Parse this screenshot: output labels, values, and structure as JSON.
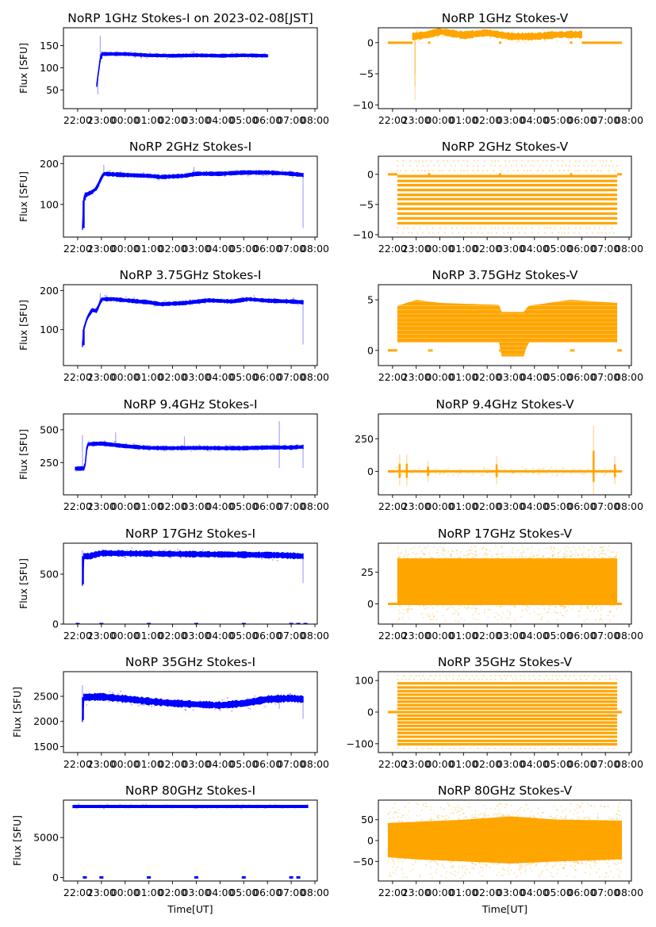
{
  "figure": {
    "x_tick_labels": [
      "22:00",
      "23:00",
      "00:00",
      "01:00",
      "02:00",
      "03:00",
      "04:00",
      "05:00",
      "06:00",
      "07:00",
      "08:00"
    ],
    "x_label": "Time[UT]",
    "y_label_left": "Flux [SFU]",
    "colors": {
      "stokes_i": "#0000ff",
      "stokes_v": "#ffa500"
    }
  },
  "chart_data": [
    {
      "type": "scatter",
      "panel": "left-1",
      "color": "#0000ff",
      "title": "NoRP 1GHz Stokes-I on 2023-02-08[JST]",
      "xlabel": "",
      "ylabel": "Flux [SFU]",
      "xlim_hours": [
        21.4,
        32.1
      ],
      "ylim": [
        8,
        190
      ],
      "yticks": [
        50,
        100,
        150
      ],
      "ytick_labels": [
        "50",
        "100",
        "150"
      ],
      "trend": [
        [
          22.8,
          60
        ],
        [
          22.95,
          120
        ],
        [
          23.0,
          131
        ],
        [
          24.0,
          131
        ],
        [
          25.0,
          128
        ],
        [
          26.0,
          127
        ],
        [
          27.0,
          128
        ],
        [
          28.0,
          127
        ],
        [
          29.0,
          128
        ],
        [
          30.0,
          127
        ],
        [
          30.0,
          125
        ]
      ],
      "spread": 3,
      "outliers": [
        [
          22.95,
          172
        ],
        [
          22.85,
          40
        ],
        [
          26.9,
          138
        ]
      ]
    },
    {
      "type": "scatter",
      "panel": "right-1",
      "color": "#ffa500",
      "title": "NoRP 1GHz Stokes-V",
      "xlabel": "",
      "ylabel": "",
      "xlim_hours": [
        21.4,
        32.1
      ],
      "ylim": [
        -10.6,
        2.4
      ],
      "yticks": [
        -10,
        -5,
        0
      ],
      "ytick_labels": [
        "−10",
        "−5",
        "0"
      ],
      "flat_segments": [
        [
          21.8,
          22.85,
          0
        ],
        [
          23.5,
          23.6,
          0
        ],
        [
          26.5,
          26.6,
          0
        ],
        [
          29.5,
          29.6,
          0
        ],
        [
          30.0,
          31.7,
          0
        ]
      ],
      "trend": [
        [
          22.85,
          1.0
        ],
        [
          23.5,
          1.3
        ],
        [
          24.0,
          1.8
        ],
        [
          25.0,
          1.2
        ],
        [
          26.0,
          1.6
        ],
        [
          27.0,
          1.0
        ],
        [
          28.0,
          1.0
        ],
        [
          29.0,
          1.3
        ],
        [
          30.0,
          1.3
        ]
      ],
      "spread": 0.5,
      "outliers": [
        [
          22.95,
          -9.2
        ],
        [
          22.95,
          -5
        ],
        [
          22.95,
          -7
        ]
      ]
    },
    {
      "type": "scatter",
      "panel": "left-2",
      "color": "#0000ff",
      "title": "NoRP 2GHz Stokes-I",
      "xlabel": "",
      "ylabel": "Flux [SFU]",
      "xlim_hours": [
        21.4,
        32.1
      ],
      "ylim": [
        20,
        218
      ],
      "yticks": [
        100,
        200
      ],
      "ytick_labels": [
        "100",
        "200"
      ],
      "trend": [
        [
          22.2,
          42
        ],
        [
          22.25,
          110
        ],
        [
          22.3,
          122
        ],
        [
          22.6,
          130
        ],
        [
          22.8,
          140
        ],
        [
          23.0,
          165
        ],
        [
          23.1,
          175
        ],
        [
          24.0,
          172
        ],
        [
          25.0,
          170
        ],
        [
          25.5,
          167
        ],
        [
          26.5,
          170
        ],
        [
          27.0,
          175
        ],
        [
          28.0,
          175
        ],
        [
          29.0,
          178
        ],
        [
          30.0,
          178
        ],
        [
          31.0,
          175
        ],
        [
          31.5,
          172
        ]
      ],
      "spread": 4,
      "outliers": [
        [
          23.1,
          197
        ],
        [
          26.9,
          192
        ],
        [
          31.5,
          42
        ]
      ]
    },
    {
      "type": "scatter",
      "panel": "right-2",
      "color": "#ffa500",
      "title": "NoRP 2GHz Stokes-V",
      "xlabel": "",
      "ylabel": "",
      "xlim_hours": [
        21.4,
        32.1
      ],
      "ylim": [
        -10.4,
        3.0
      ],
      "yticks": [
        -10,
        -5,
        0
      ],
      "ytick_labels": [
        "−10",
        "−5",
        "0"
      ],
      "flat_segments": [
        [
          21.8,
          22.2,
          0
        ],
        [
          23.5,
          23.6,
          0
        ],
        [
          26.5,
          26.6,
          0
        ],
        [
          29.5,
          29.6,
          0
        ],
        [
          31.5,
          31.7,
          0
        ]
      ],
      "levels": [
        -0.3,
        -1.1,
        -1.8,
        -2.6,
        -3.4,
        -4.1,
        -4.9,
        -5.7,
        -6.5,
        -7.3,
        -8.1
      ],
      "levels_range": [
        22.2,
        31.5
      ],
      "faint_levels": [
        2.2,
        1.4,
        0.6,
        -8.9,
        -9.7
      ]
    },
    {
      "type": "scatter",
      "panel": "left-3",
      "color": "#0000ff",
      "title": "NoRP 3.75GHz Stokes-I",
      "xlabel": "",
      "ylabel": "Flux [SFU]",
      "xlim_hours": [
        21.4,
        32.1
      ],
      "ylim": [
        8,
        215
      ],
      "yticks": [
        100,
        200
      ],
      "ytick_labels": [
        "100",
        "200"
      ],
      "trend": [
        [
          22.2,
          60
        ],
        [
          22.25,
          100
        ],
        [
          22.4,
          130
        ],
        [
          22.6,
          150
        ],
        [
          22.8,
          148
        ],
        [
          22.95,
          170
        ],
        [
          23.0,
          178
        ],
        [
          23.5,
          178
        ],
        [
          24.0,
          175
        ],
        [
          25.0,
          170
        ],
        [
          25.5,
          165
        ],
        [
          26.5,
          168
        ],
        [
          27.5,
          175
        ],
        [
          28.5,
          172
        ],
        [
          29.2,
          178
        ],
        [
          30.0,
          174
        ],
        [
          31.0,
          172
        ],
        [
          31.5,
          170
        ]
      ],
      "spread": 4,
      "outliers": [
        [
          22.95,
          193
        ],
        [
          31.5,
          62
        ]
      ]
    },
    {
      "type": "scatter",
      "panel": "right-3",
      "color": "#ffa500",
      "title": "NoRP 3.75GHz Stokes-V",
      "xlabel": "",
      "ylabel": "",
      "xlim_hours": [
        21.4,
        32.1
      ],
      "ylim": [
        -1.5,
        6.5
      ],
      "yticks": [
        0,
        5
      ],
      "ytick_labels": [
        "0",
        "5"
      ],
      "flat_segments": [
        [
          21.8,
          22.2,
          0
        ],
        [
          23.5,
          23.7,
          0
        ],
        [
          26.5,
          26.7,
          0
        ],
        [
          29.5,
          29.7,
          0
        ],
        [
          31.5,
          31.7,
          0
        ]
      ],
      "band": [
        [
          22.2,
          0.8,
          4.4
        ],
        [
          23.0,
          0.8,
          5.0
        ],
        [
          24.0,
          0.8,
          4.7
        ],
        [
          26.5,
          0.8,
          4.5
        ],
        [
          26.6,
          -0.6,
          3.8
        ],
        [
          27.6,
          -0.6,
          3.8
        ],
        [
          27.7,
          0.8,
          4.4
        ],
        [
          29.5,
          0.8,
          5.0
        ],
        [
          31.5,
          0.8,
          4.7
        ]
      ],
      "band_lines": true
    },
    {
      "type": "scatter",
      "panel": "left-4",
      "color": "#0000ff",
      "title": "NoRP 9.4GHz Stokes-I",
      "xlabel": "",
      "ylabel": "Flux [SFU]",
      "xlim_hours": [
        21.4,
        32.1
      ],
      "ylim": [
        5,
        620
      ],
      "yticks": [
        250,
        500
      ],
      "ytick_labels": [
        "250",
        "500"
      ],
      "trend": [
        [
          21.9,
          205
        ],
        [
          22.0,
          205
        ],
        [
          22.3,
          205
        ],
        [
          22.4,
          390
        ],
        [
          23.0,
          395
        ],
        [
          23.5,
          385
        ],
        [
          24.0,
          375
        ],
        [
          25.0,
          362
        ],
        [
          26.0,
          360
        ],
        [
          27.0,
          362
        ],
        [
          28.0,
          360
        ],
        [
          29.0,
          360
        ],
        [
          30.0,
          365
        ],
        [
          30.5,
          365
        ],
        [
          31.0,
          365
        ],
        [
          31.5,
          370
        ]
      ],
      "spread": 12,
      "outliers": [
        [
          30.5,
          565
        ],
        [
          30.5,
          210
        ],
        [
          31.5,
          210
        ],
        [
          22.2,
          460
        ],
        [
          23.6,
          480
        ],
        [
          26.5,
          450
        ]
      ]
    },
    {
      "type": "scatter",
      "panel": "right-4",
      "color": "#ffa500",
      "title": "NoRP 9.4GHz Stokes-V",
      "xlabel": "",
      "ylabel": "",
      "xlim_hours": [
        21.4,
        32.1
      ],
      "ylim": [
        -180,
        440
      ],
      "yticks": [
        0,
        250
      ],
      "ytick_labels": [
        "0",
        "250"
      ],
      "flat_segments": [
        [
          21.8,
          31.7,
          0
        ]
      ],
      "spikes": [
        [
          22.3,
          -110,
          130
        ],
        [
          22.6,
          -110,
          130
        ],
        [
          23.5,
          -80,
          80
        ],
        [
          26.4,
          -100,
          120
        ],
        [
          30.5,
          -180,
          350
        ],
        [
          31.4,
          -100,
          120
        ]
      ],
      "spread": 10
    },
    {
      "type": "scatter",
      "panel": "left-5",
      "color": "#0000ff",
      "title": "NoRP 17GHz Stokes-I",
      "xlabel": "",
      "ylabel": "Flux [SFU]",
      "xlim_hours": [
        21.4,
        32.1
      ],
      "ylim": [
        0,
        810
      ],
      "yticks": [
        0,
        500
      ],
      "ytick_labels": [
        "0",
        "500"
      ],
      "trend": [
        [
          22.2,
          400
        ],
        [
          22.22,
          680
        ],
        [
          22.5,
          680
        ],
        [
          23.0,
          710
        ],
        [
          25.0,
          705
        ],
        [
          27.0,
          700
        ],
        [
          29.0,
          695
        ],
        [
          30.5,
          690
        ],
        [
          31.5,
          680
        ]
      ],
      "spread": 25,
      "outliers": [
        [
          22.2,
          740
        ],
        [
          31.5,
          410
        ]
      ],
      "zero_marks": [
        22.0,
        23.0,
        25.0,
        27.0,
        29.0,
        31.0,
        31.3,
        31.6
      ]
    },
    {
      "type": "scatter",
      "panel": "right-5",
      "color": "#ffa500",
      "title": "NoRP 17GHz Stokes-V",
      "xlabel": "",
      "ylabel": "",
      "xlim_hours": [
        21.4,
        32.1
      ],
      "ylim": [
        -16,
        48
      ],
      "yticks": [
        0,
        25
      ],
      "ytick_labels": [
        "0",
        "25"
      ],
      "flat_segments": [
        [
          21.8,
          31.7,
          0
        ]
      ],
      "band": [
        [
          22.2,
          0,
          36
        ],
        [
          31.5,
          0,
          36
        ]
      ],
      "faint_range": [
        -14,
        46
      ]
    },
    {
      "type": "scatter",
      "panel": "left-6",
      "color": "#0000ff",
      "title": "NoRP 35GHz Stokes-I",
      "xlabel": "",
      "ylabel": "Flux [SFU]",
      "xlim_hours": [
        21.4,
        32.1
      ],
      "ylim": [
        1380,
        2990
      ],
      "yticks": [
        1500,
        2000,
        2500
      ],
      "ytick_labels": [
        "1500",
        "2000",
        "2500"
      ],
      "trend": [
        [
          22.2,
          2030
        ],
        [
          22.22,
          2480
        ],
        [
          23.0,
          2490
        ],
        [
          24.0,
          2450
        ],
        [
          25.0,
          2400
        ],
        [
          26.0,
          2360
        ],
        [
          27.0,
          2340
        ],
        [
          28.0,
          2320
        ],
        [
          29.0,
          2360
        ],
        [
          30.0,
          2440
        ],
        [
          31.0,
          2460
        ],
        [
          31.5,
          2440
        ]
      ],
      "spread": 60,
      "outliers": [
        [
          22.2,
          2720
        ],
        [
          28.0,
          2200
        ],
        [
          30.5,
          2250
        ],
        [
          31.5,
          2050
        ]
      ]
    },
    {
      "type": "scatter",
      "panel": "right-6",
      "color": "#ffa500",
      "title": "NoRP 35GHz Stokes-V",
      "xlabel": "",
      "ylabel": "",
      "xlim_hours": [
        21.4,
        32.1
      ],
      "ylim": [
        -128,
        128
      ],
      "yticks": [
        -100,
        0,
        100
      ],
      "ytick_labels": [
        "−100",
        "0",
        "100"
      ],
      "flat_segments": [
        [
          21.8,
          31.7,
          0
        ]
      ],
      "levels": [
        91,
        78,
        66,
        55,
        44,
        33,
        22,
        11,
        -11,
        -22,
        -33,
        -44,
        -55,
        -66,
        -78,
        -91,
        -102
      ],
      "levels_range": [
        22.2,
        31.5
      ],
      "faint_levels": [
        115,
        104,
        -115
      ]
    },
    {
      "type": "scatter",
      "panel": "left-7",
      "color": "#0000ff",
      "title": "NoRP 80GHz Stokes-I",
      "xlabel": "Time[UT]",
      "ylabel": "Flux [SFU]",
      "xlim_hours": [
        21.4,
        32.1
      ],
      "ylim": [
        -450,
        9700
      ],
      "yticks": [
        0,
        5000
      ],
      "ytick_labels": [
        "0",
        "5000"
      ],
      "trend": [
        [
          21.8,
          8900
        ],
        [
          31.7,
          8900
        ]
      ],
      "spread": 120,
      "outliers": [],
      "zero_marks": [
        22.3,
        23.0,
        25.0,
        27.0,
        29.0,
        31.0,
        31.3
      ]
    },
    {
      "type": "scatter",
      "panel": "right-7",
      "color": "#ffa500",
      "title": "NoRP 80GHz Stokes-V",
      "xlabel": "Time[UT]",
      "ylabel": "",
      "xlim_hours": [
        21.4,
        32.1
      ],
      "ylim": [
        -97,
        97
      ],
      "yticks": [
        -50,
        0,
        50
      ],
      "ytick_labels": [
        "−50",
        "0",
        "50"
      ],
      "flat_segments": [],
      "band": [
        [
          21.8,
          -40,
          42
        ],
        [
          23.0,
          -45,
          45
        ],
        [
          25.0,
          -50,
          50
        ],
        [
          27.0,
          -55,
          58
        ],
        [
          29.0,
          -50,
          50
        ],
        [
          31.7,
          -45,
          48
        ]
      ],
      "faint_range": [
        -90,
        90
      ]
    }
  ]
}
